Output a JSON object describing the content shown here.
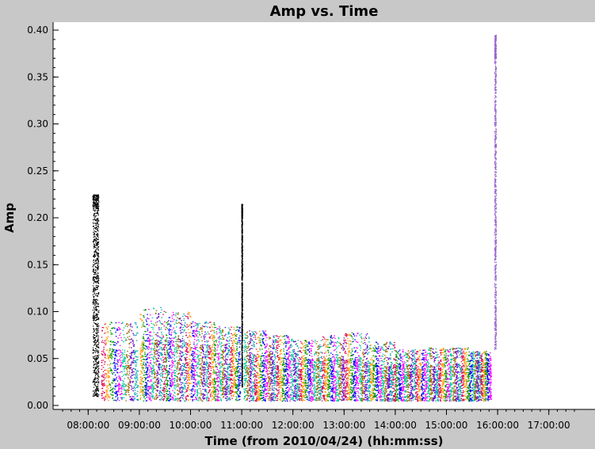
{
  "chart_data": {
    "type": "scatter",
    "title": "Amp vs. Time",
    "xlabel": "Time (from 2010/04/24) (hh:mm:ss)",
    "ylabel": "Amp",
    "x_unit": "hh:mm:ss",
    "xlim": [
      "07:30:00",
      "17:30:00"
    ],
    "ylim": [
      0,
      0.4
    ],
    "x_ticks": [
      "08:00:00",
      "09:00:00",
      "10:00:00",
      "11:00:00",
      "12:00:00",
      "13:00:00",
      "14:00:00",
      "15:00:00",
      "16:00:00",
      "17:00:00"
    ],
    "y_ticks": [
      "0.00",
      "0.05",
      "0.10",
      "0.15",
      "0.20",
      "0.25",
      "0.30",
      "0.35",
      "0.40"
    ],
    "grid": false,
    "legend": "none",
    "series": [
      {
        "color": "#000000",
        "scans": [
          {
            "start": "08:05:00",
            "end": "08:12:00",
            "ymin": 0.01,
            "ymax": 0.225,
            "dense_max": 0.21
          },
          {
            "start": "10:59:30",
            "end": "11:00:30",
            "ymin": 0.02,
            "ymax": 0.215,
            "dense_max": 0.2
          }
        ]
      },
      {
        "color": "#9966cc",
        "scans": [
          {
            "start": "15:56:00",
            "end": "15:58:00",
            "ymin": 0.06,
            "ymax": 0.395,
            "dense_max": 0.37
          }
        ]
      },
      {
        "name_colors": [
          "#dd0055",
          "#ff9900",
          "#009900",
          "#0000ff",
          "#ff00ff",
          "#00cc99",
          "#996600",
          "#6600cc",
          "#00aaaa"
        ],
        "scans": [
          {
            "start": "08:15:00",
            "end": "08:58:00",
            "ymin": 0.005,
            "ymax": 0.09,
            "dense_max": 0.06
          },
          {
            "start": "09:00:00",
            "end": "09:30:00",
            "ymin": 0.005,
            "ymax": 0.105,
            "dense_max": 0.07
          },
          {
            "start": "09:30:00",
            "end": "10:00:00",
            "ymin": 0.005,
            "ymax": 0.1,
            "dense_max": 0.07
          },
          {
            "start": "10:00:00",
            "end": "10:30:00",
            "ymin": 0.005,
            "ymax": 0.09,
            "dense_max": 0.065
          },
          {
            "start": "10:30:00",
            "end": "10:58:00",
            "ymin": 0.005,
            "ymax": 0.085,
            "dense_max": 0.06
          },
          {
            "start": "11:02:00",
            "end": "11:30:00",
            "ymin": 0.005,
            "ymax": 0.08,
            "dense_max": 0.055
          },
          {
            "start": "11:30:00",
            "end": "12:00:00",
            "ymin": 0.005,
            "ymax": 0.075,
            "dense_max": 0.055
          },
          {
            "start": "12:00:00",
            "end": "12:30:00",
            "ymin": 0.005,
            "ymax": 0.07,
            "dense_max": 0.05
          },
          {
            "start": "12:30:00",
            "end": "13:00:00",
            "ymin": 0.005,
            "ymax": 0.075,
            "dense_max": 0.05
          },
          {
            "start": "13:00:00",
            "end": "13:30:00",
            "ymin": 0.005,
            "ymax": 0.078,
            "dense_max": 0.05
          },
          {
            "start": "13:30:00",
            "end": "14:00:00",
            "ymin": 0.005,
            "ymax": 0.068,
            "dense_max": 0.045
          },
          {
            "start": "14:00:00",
            "end": "14:30:00",
            "ymin": 0.005,
            "ymax": 0.06,
            "dense_max": 0.045
          },
          {
            "start": "14:30:00",
            "end": "15:00:00",
            "ymin": 0.005,
            "ymax": 0.062,
            "dense_max": 0.045
          },
          {
            "start": "15:00:00",
            "end": "15:30:00",
            "ymin": 0.005,
            "ymax": 0.062,
            "dense_max": 0.045
          },
          {
            "start": "15:30:00",
            "end": "15:52:00",
            "ymin": 0.005,
            "ymax": 0.058,
            "dense_max": 0.045
          }
        ]
      }
    ]
  }
}
